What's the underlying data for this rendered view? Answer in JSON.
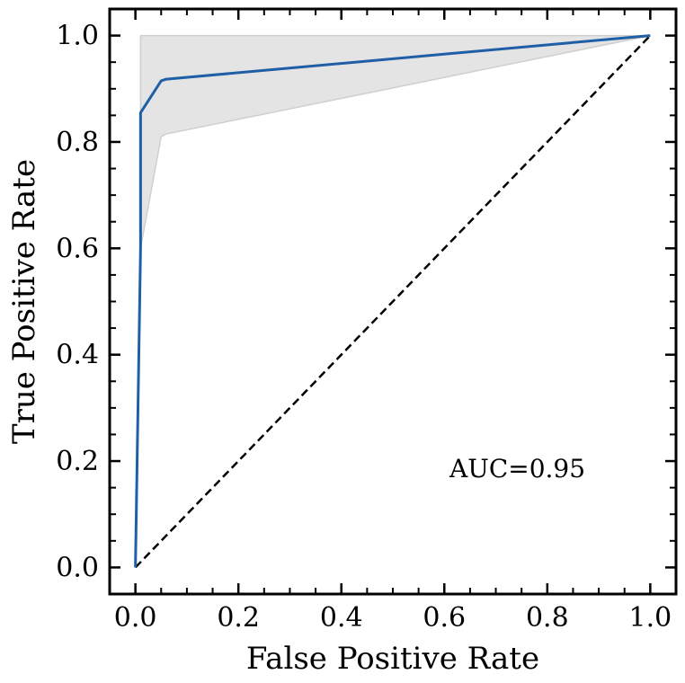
{
  "chart_data": {
    "type": "line",
    "title": "",
    "xlabel": "False Positive Rate",
    "ylabel": "True Positive Rate",
    "xlim": [
      -0.05,
      1.05
    ],
    "ylim": [
      -0.05,
      1.05
    ],
    "xticks": [
      "0.0",
      "0.2",
      "0.4",
      "0.6",
      "0.8",
      "1.0"
    ],
    "yticks": [
      "0.0",
      "0.2",
      "0.4",
      "0.6",
      "0.8",
      "1.0"
    ],
    "tick_values": [
      0.0,
      0.2,
      0.4,
      0.6,
      0.8,
      1.0
    ],
    "minor_tick_step": 0.05,
    "grid": false,
    "series": [
      {
        "x": [
          0.0,
          0.01,
          0.01,
          0.05,
          0.06,
          1.0
        ],
        "y": [
          0.0,
          0.6,
          0.855,
          0.915,
          0.918,
          1.0
        ],
        "color": "#1f5fa6"
      }
    ],
    "confidence_band": {
      "upper": {
        "x": [
          0.01,
          0.01,
          1.0
        ],
        "y": [
          0.86,
          1.0,
          1.0
        ]
      },
      "lower": {
        "x": [
          0.01,
          0.05,
          0.06,
          1.0
        ],
        "y": [
          0.6,
          0.81,
          0.815,
          1.0
        ]
      },
      "color": "#e4e4e4"
    },
    "reference_line": {
      "x": [
        0.0,
        1.0
      ],
      "y": [
        0.0,
        1.0
      ],
      "style": "dashed",
      "color": "#000000"
    },
    "annotation": {
      "text": "AUC=0.95",
      "x": 0.61,
      "y": 0.17
    }
  }
}
